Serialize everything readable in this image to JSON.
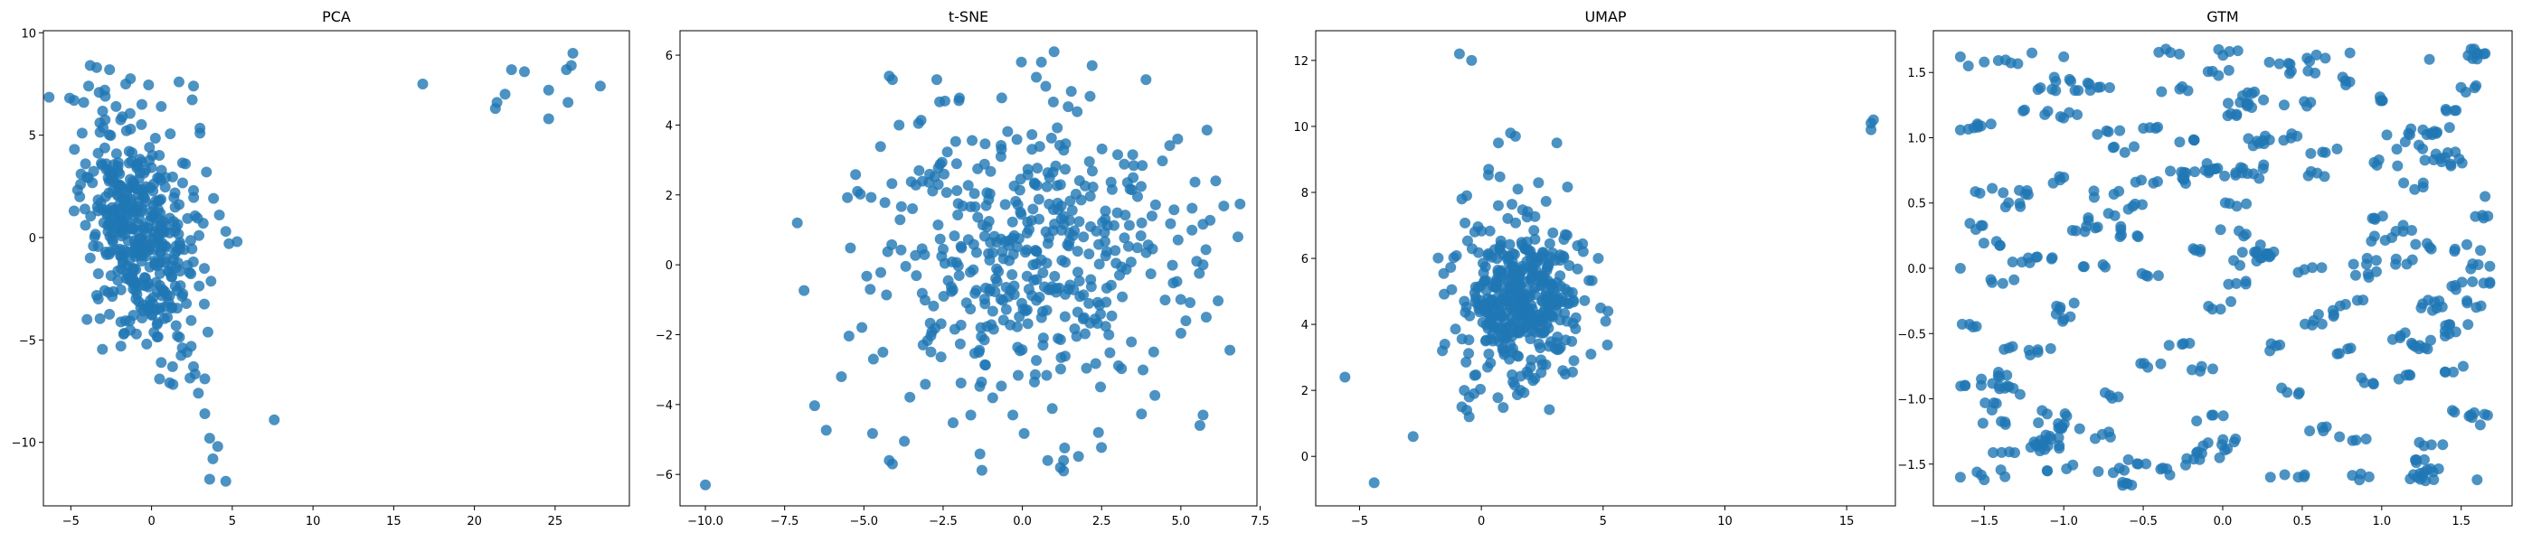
{
  "chart_data": [
    {
      "type": "scatter",
      "title": "PCA",
      "color": "#1f77b4",
      "xlim": [
        -6.7,
        29.6
      ],
      "ylim": [
        -13.1,
        10.1
      ],
      "xticks": [
        -5,
        0,
        5,
        10,
        15,
        20,
        25
      ],
      "yticks": [
        -10,
        -5,
        0,
        5,
        10
      ],
      "xticklabels": [
        "−5",
        "0",
        "5",
        "10",
        "15",
        "20",
        "25"
      ],
      "yticklabels": [
        "−10",
        "−5",
        "0",
        "5",
        "10"
      ],
      "cluster": {
        "n": 420,
        "seed": 11,
        "mx": -0.8,
        "my": 0.2,
        "sx": 1.6,
        "sy": 2.6,
        "rho": -0.35
      },
      "points": [
        [
          -4.8,
          6.7
        ],
        [
          -4.2,
          6.6
        ],
        [
          -3.8,
          8.4
        ],
        [
          -3.4,
          8.3
        ],
        [
          -2.6,
          8.2
        ],
        [
          -3.9,
          7.4
        ],
        [
          -2.9,
          7.2
        ],
        [
          -2.2,
          6.4
        ],
        [
          -1.6,
          7.5
        ],
        [
          -0.6,
          6.5
        ],
        [
          0.6,
          6.4
        ],
        [
          1.7,
          7.6
        ],
        [
          2.6,
          7.4
        ],
        [
          -4.3,
          5.1
        ],
        [
          -3.2,
          5.6
        ],
        [
          -1.3,
          5.3
        ],
        [
          3.0,
          5.1
        ],
        [
          2.1,
          3.6
        ],
        [
          3.4,
          3.2
        ],
        [
          2.6,
          2.3
        ],
        [
          4.2,
          1.1
        ],
        [
          3.2,
          0.7
        ],
        [
          4.8,
          -0.3
        ],
        [
          5.3,
          -0.2
        ],
        [
          4.6,
          0.3
        ],
        [
          -4.4,
          2.6
        ],
        [
          -4.8,
          1.3
        ],
        [
          -3.8,
          -1.0
        ],
        [
          -4.0,
          -4.0
        ],
        [
          -3.3,
          -3.0
        ],
        [
          2.2,
          -5.6
        ],
        [
          1.6,
          -4.8
        ],
        [
          2.6,
          -6.3
        ],
        [
          3.3,
          -6.9
        ],
        [
          2.9,
          -7.6
        ],
        [
          3.3,
          -8.6
        ],
        [
          3.6,
          -9.8
        ],
        [
          3.8,
          -10.8
        ],
        [
          4.1,
          -10.2
        ],
        [
          3.6,
          -11.8
        ],
        [
          4.6,
          -11.9
        ],
        [
          7.6,
          -8.9
        ],
        [
          0.6,
          -6.1
        ],
        [
          1.3,
          -6.3
        ],
        [
          -0.3,
          -5.2
        ],
        [
          -1.9,
          -5.3
        ],
        [
          0.3,
          -3.5
        ],
        [
          16.8,
          7.5
        ],
        [
          21.3,
          6.3
        ],
        [
          21.4,
          6.6
        ],
        [
          21.9,
          7.0
        ],
        [
          22.3,
          8.2
        ],
        [
          23.1,
          8.1
        ],
        [
          24.6,
          7.2
        ],
        [
          24.6,
          5.8
        ],
        [
          25.7,
          8.2
        ],
        [
          26.0,
          8.4
        ],
        [
          26.1,
          9.0
        ],
        [
          25.8,
          6.6
        ],
        [
          27.8,
          7.4
        ]
      ]
    },
    {
      "type": "scatter",
      "title": "t-SNE",
      "color": "#1f77b4",
      "xlim": [
        -10.8,
        7.4
      ],
      "ylim": [
        -6.9,
        6.7
      ],
      "xticks": [
        -10,
        -7.5,
        -5,
        -2.5,
        0,
        2.5,
        5,
        7.5
      ],
      "yticks": [
        -6,
        -4,
        -2,
        0,
        2,
        4,
        6
      ],
      "xticklabels": [
        "−10.0",
        "−7.5",
        "−5.0",
        "−2.5",
        "0.0",
        "2.5",
        "5.0",
        "7.5"
      ],
      "yticklabels": [
        "−6",
        "−4",
        "−2",
        "0",
        "2",
        "4",
        "6"
      ],
      "cluster": {
        "n": 440,
        "seed": 23,
        "mx": 0.0,
        "my": 0.2,
        "sx": 2.4,
        "sy": 2.2,
        "rho": 0.0
      },
      "points": [
        [
          -10.0,
          -6.3
        ],
        [
          -7.1,
          1.2
        ],
        [
          -4.2,
          5.4
        ],
        [
          -4.1,
          5.3
        ],
        [
          -2.7,
          5.3
        ],
        [
          0.6,
          5.8
        ],
        [
          1.0,
          6.1
        ],
        [
          2.2,
          5.7
        ],
        [
          3.9,
          5.3
        ],
        [
          -5.2,
          2.1
        ],
        [
          -4.8,
          -0.7
        ],
        [
          -4.7,
          -2.7
        ],
        [
          -4.2,
          -5.6
        ],
        [
          -4.1,
          -5.7
        ],
        [
          -4.4,
          -2.5
        ],
        [
          6.1,
          2.4
        ],
        [
          6.8,
          0.8
        ],
        [
          5.5,
          0.1
        ],
        [
          5.7,
          0.0
        ],
        [
          5.8,
          -1.5
        ],
        [
          5.6,
          -4.6
        ],
        [
          5.7,
          -4.3
        ],
        [
          0.8,
          -5.6
        ],
        [
          1.2,
          -5.8
        ],
        [
          1.3,
          -5.9
        ],
        [
          1.3,
          -5.6
        ],
        [
          -0.3,
          -4.3
        ],
        [
          2.4,
          -4.8
        ],
        [
          4.9,
          3.6
        ]
      ]
    },
    {
      "type": "scatter",
      "title": "UMAP",
      "color": "#1f77b4",
      "xlim": [
        -6.8,
        17.0
      ],
      "ylim": [
        -1.5,
        12.9
      ],
      "xticks": [
        -5,
        0,
        5,
        10,
        15
      ],
      "yticks": [
        0,
        2,
        4,
        6,
        8,
        10,
        12
      ],
      "xticklabels": [
        "−5",
        "0",
        "5",
        "10",
        "15"
      ],
      "yticklabels": [
        "0",
        "2",
        "4",
        "6",
        "8",
        "10",
        "12"
      ],
      "cluster": {
        "n": 400,
        "seed": 37,
        "mx": 1.7,
        "my": 4.8,
        "sx": 1.2,
        "sy": 1.2,
        "rho": 0.0
      },
      "points": [
        [
          -5.6,
          2.4
        ],
        [
          -4.4,
          -0.8
        ],
        [
          -2.8,
          0.6
        ],
        [
          -1.6,
          3.2
        ],
        [
          -1.5,
          3.4
        ],
        [
          -0.8,
          1.5
        ],
        [
          -0.6,
          1.4
        ],
        [
          -0.5,
          1.8
        ],
        [
          -0.7,
          2.0
        ],
        [
          -0.5,
          1.2
        ],
        [
          -0.3,
          1.9
        ],
        [
          -0.9,
          12.2
        ],
        [
          -0.4,
          12.0
        ],
        [
          0.7,
          9.5
        ],
        [
          1.2,
          9.8
        ],
        [
          1.4,
          9.7
        ],
        [
          3.1,
          9.5
        ],
        [
          0.3,
          8.7
        ],
        [
          1.5,
          8.1
        ],
        [
          -0.6,
          7.9
        ],
        [
          -0.8,
          7.8
        ],
        [
          4.8,
          6.0
        ],
        [
          4.9,
          4.5
        ],
        [
          5.2,
          4.4
        ],
        [
          4.5,
          3.1
        ],
        [
          3.8,
          2.9
        ],
        [
          16.0,
          10.1
        ],
        [
          16.1,
          10.2
        ],
        [
          16.0,
          9.9
        ]
      ]
    },
    {
      "type": "scatter",
      "title": "GTM",
      "color": "#1f77b4",
      "xlim": [
        -1.82,
        1.82
      ],
      "ylim": [
        -1.82,
        1.82
      ],
      "xticks": [
        -1.5,
        -1.0,
        -0.5,
        0.0,
        0.5,
        1.0,
        1.5
      ],
      "yticks": [
        -1.5,
        -1.0,
        -0.5,
        0.0,
        0.5,
        1.0,
        1.5
      ],
      "xticklabels": [
        "−1.5",
        "−1.0",
        "−0.5",
        "0.0",
        "0.5",
        "1.0",
        "1.5"
      ],
      "yticklabels": [
        "−1.5",
        "−1.0",
        "−0.5",
        "0.0",
        "0.5",
        "1.0",
        "1.5"
      ],
      "grid_scatter": {
        "n": 620,
        "seed": 53,
        "lim": 1.68
      },
      "points": [
        [
          -1.65,
          1.62
        ],
        [
          -1.6,
          1.55
        ],
        [
          -1.5,
          1.58
        ],
        [
          -1.2,
          1.65
        ],
        [
          -1.0,
          1.62
        ],
        [
          0.8,
          1.65
        ],
        [
          1.3,
          1.6
        ],
        [
          1.6,
          1.65
        ],
        [
          -1.65,
          -1.6
        ],
        [
          -1.5,
          -1.62
        ],
        [
          -0.6,
          -1.65
        ],
        [
          0.3,
          -1.6
        ],
        [
          1.2,
          -1.58
        ],
        [
          1.6,
          -1.62
        ],
        [
          -1.65,
          0.0
        ],
        [
          1.65,
          0.55
        ],
        [
          -1.62,
          -0.9
        ],
        [
          1.62,
          -1.2
        ]
      ]
    }
  ]
}
